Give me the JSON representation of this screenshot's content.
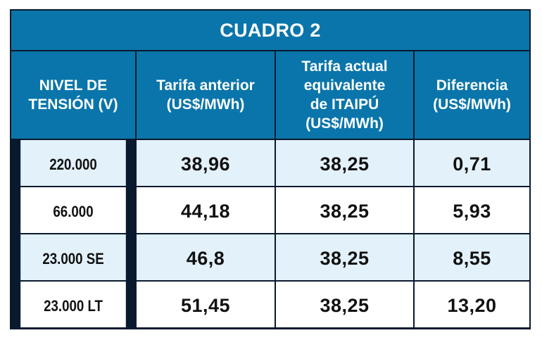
{
  "title": "CUADRO 2",
  "headers": [
    "NIVEL DE\nTENSIÓN (V)",
    "Tarifa anterior\n(US$/MWh)",
    "Tarifa actual\nequivalente\nde ITAIPÚ\n(US$/MWh)",
    "Diferencia\n(US$/MWh)"
  ],
  "rows": [
    {
      "level": "220.000",
      "anterior": "38,96",
      "actual": "38,25",
      "diferencia": "0,71"
    },
    {
      "level": "66.000",
      "anterior": "44,18",
      "actual": "38,25",
      "diferencia": "5,93"
    },
    {
      "level": "23.000 SE",
      "anterior": "46,8",
      "actual": "38,25",
      "diferencia": "8,55"
    },
    {
      "level": "23.000 LT",
      "anterior": "51,45",
      "actual": "38,25",
      "diferencia": "13,20"
    }
  ],
  "colors": {
    "header_bg": "#0a75aa",
    "stripe_bg": "#e3f1fa",
    "border": "#0a1a2e"
  }
}
